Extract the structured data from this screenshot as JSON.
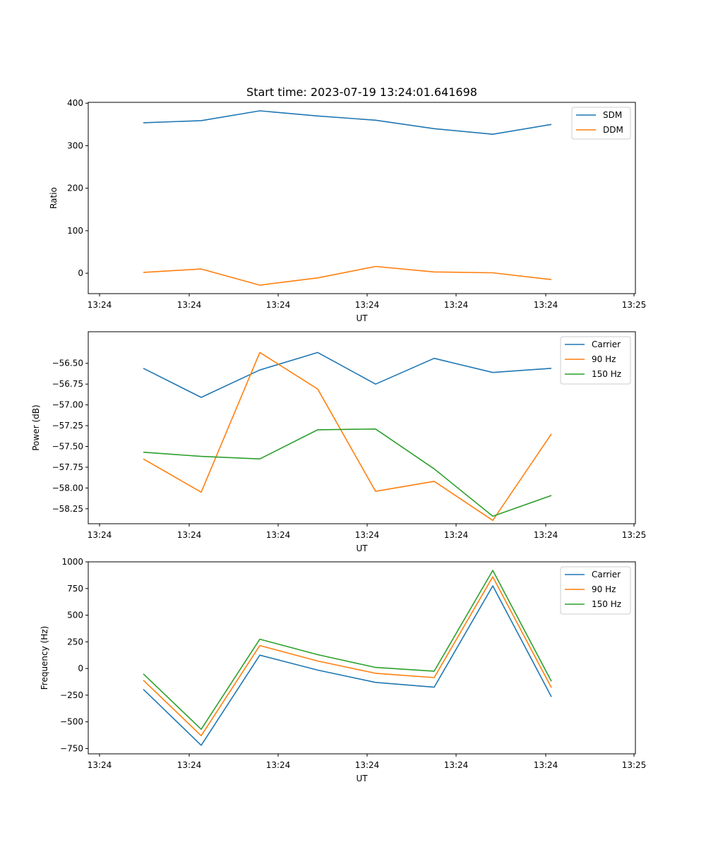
{
  "title": "Start time: 2023-07-19 13:24:01.641698",
  "colors": {
    "blue": "#1f77b4",
    "orange": "#ff7f0e",
    "green": "#2ca02c"
  },
  "chart_data": [
    {
      "type": "line",
      "xlabel": "UT",
      "ylabel": "Ratio",
      "x_tick_labels": [
        "13:24",
        "13:24",
        "13:24",
        "13:24",
        "13:24",
        "13:24",
        "13:25"
      ],
      "ylim": [
        -48,
        402
      ],
      "yticks": [
        0,
        100,
        200,
        300,
        400
      ],
      "ytick_labels": [
        "0",
        "100",
        "200",
        "300",
        "400"
      ],
      "legend": "top-right",
      "series": [
        {
          "name": "SDM",
          "color": "#1f77b4",
          "values": [
            354,
            359,
            382,
            370,
            360,
            340,
            327,
            350
          ]
        },
        {
          "name": "DDM",
          "color": "#ff7f0e",
          "values": [
            2,
            10,
            -28,
            -11,
            16,
            3,
            1,
            -15
          ]
        }
      ]
    },
    {
      "type": "line",
      "xlabel": "UT",
      "ylabel": "Power (dB)",
      "x_tick_labels": [
        "13:24",
        "13:24",
        "13:24",
        "13:24",
        "13:24",
        "13:24",
        "13:25"
      ],
      "ylim": [
        -58.43,
        -56.12
      ],
      "yticks": [
        -56.5,
        -56.75,
        -57.0,
        -57.25,
        -57.5,
        -57.75,
        -58.0,
        -58.25
      ],
      "ytick_labels": [
        "−56.50",
        "−56.75",
        "−57.00",
        "−57.25",
        "−57.50",
        "−57.75",
        "−58.00",
        "−58.25"
      ],
      "legend": "top-right",
      "series": [
        {
          "name": "Carrier",
          "color": "#1f77b4",
          "values": [
            -56.56,
            -56.91,
            -56.58,
            -56.37,
            -56.75,
            -56.44,
            -56.61,
            -56.56
          ]
        },
        {
          "name": "90 Hz",
          "color": "#ff7f0e",
          "values": [
            -57.65,
            -58.05,
            -56.37,
            -56.81,
            -58.04,
            -57.92,
            -58.39,
            -57.35
          ]
        },
        {
          "name": "150 Hz",
          "color": "#2ca02c",
          "values": [
            -57.57,
            -57.62,
            -57.65,
            -57.3,
            -57.29,
            -57.77,
            -58.34,
            -58.09
          ]
        }
      ]
    },
    {
      "type": "line",
      "xlabel": "UT",
      "ylabel": "Frequency (Hz)",
      "x_tick_labels": [
        "13:24",
        "13:24",
        "13:24",
        "13:24",
        "13:24",
        "13:24",
        "13:25"
      ],
      "ylim": [
        -800,
        1000
      ],
      "yticks": [
        1000,
        750,
        500,
        250,
        0,
        -250,
        -500,
        -750
      ],
      "ytick_labels": [
        "1000",
        "750",
        "500",
        "250",
        "0",
        "−250",
        "−500",
        "−750"
      ],
      "legend": "top-right",
      "series": [
        {
          "name": "Carrier",
          "color": "#1f77b4",
          "values": [
            -195,
            -720,
            125,
            -15,
            -130,
            -175,
            775,
            -265
          ]
        },
        {
          "name": "90 Hz",
          "color": "#ff7f0e",
          "values": [
            -110,
            -630,
            215,
            70,
            -45,
            -85,
            860,
            -180
          ]
        },
        {
          "name": "150 Hz",
          "color": "#2ca02c",
          "values": [
            -50,
            -570,
            275,
            130,
            10,
            -25,
            920,
            -120
          ]
        }
      ]
    }
  ]
}
